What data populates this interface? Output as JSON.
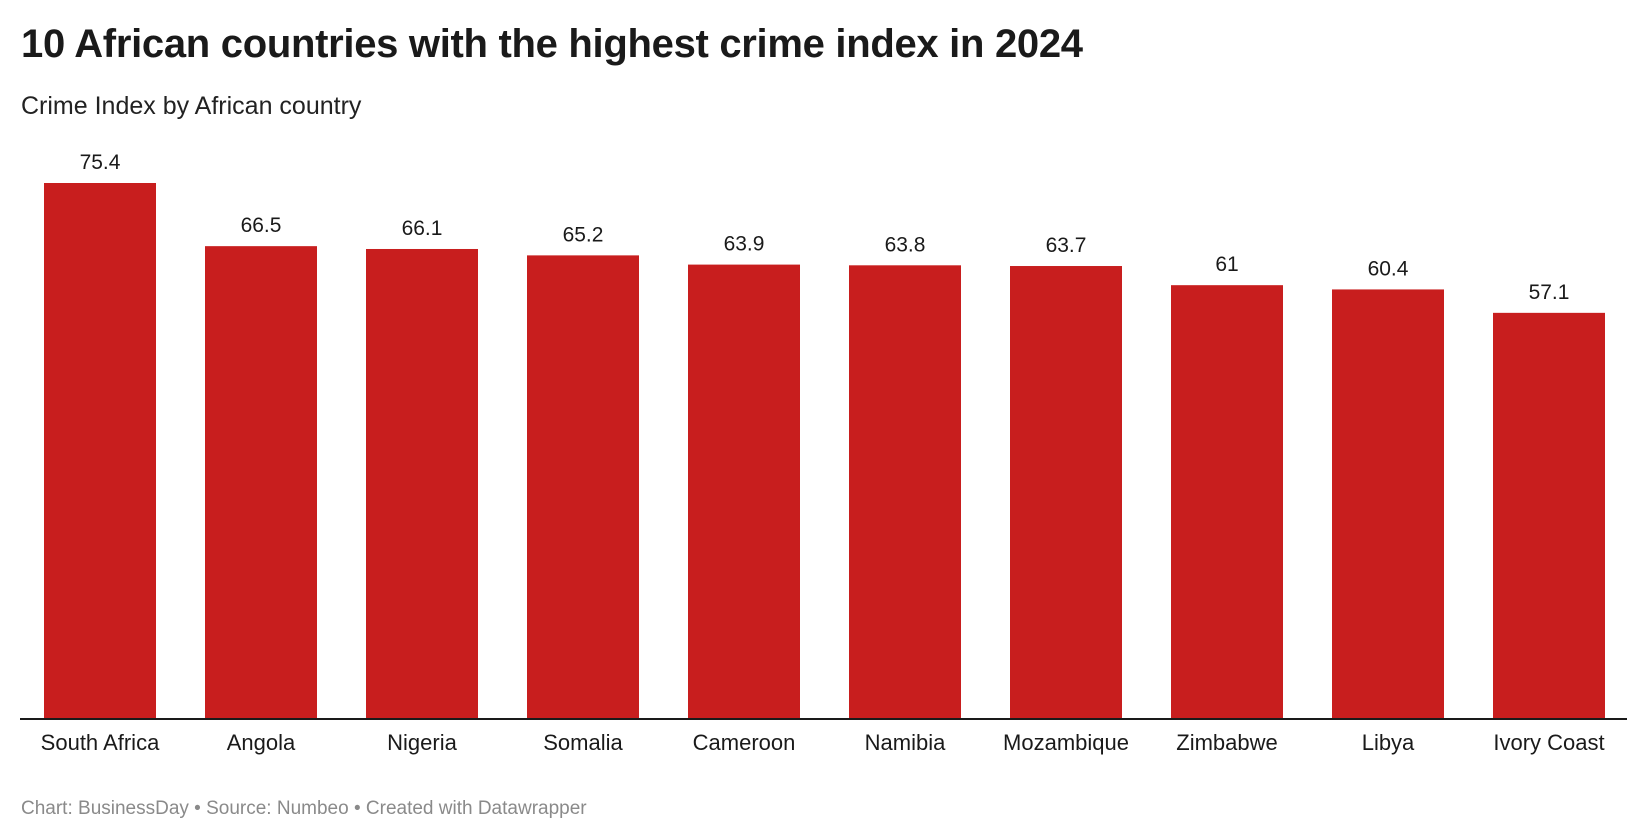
{
  "title": "10 African countries with the highest crime index in 2024",
  "subtitle": "Crime Index by African country",
  "footer": "Chart: BusinessDay • Source: Numbeo • Created with Datawrapper",
  "colors": {
    "bar": "#c81e1e",
    "axis": "#1a1a1a"
  },
  "chart_data": {
    "type": "bar",
    "title": "10 African countries with the highest crime index in 2024",
    "subtitle": "Crime Index by African country",
    "xlabel": "",
    "ylabel": "",
    "ylim": [
      0,
      75.4
    ],
    "grid": false,
    "categories": [
      "South Africa",
      "Angola",
      "Nigeria",
      "Somalia",
      "Cameroon",
      "Namibia",
      "Mozambique",
      "Zimbabwe",
      "Libya",
      "Ivory Coast"
    ],
    "values": [
      75.4,
      66.5,
      66.1,
      65.2,
      63.9,
      63.8,
      63.7,
      61,
      60.4,
      57.1
    ],
    "value_labels": [
      "75.4",
      "66.5",
      "66.1",
      "65.2",
      "63.9",
      "63.8",
      "63.7",
      "61",
      "60.4",
      "57.1"
    ]
  }
}
